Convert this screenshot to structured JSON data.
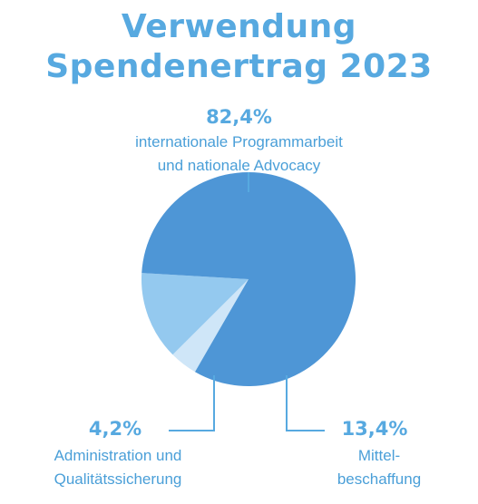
{
  "chart_data": {
    "type": "pie",
    "title_lines": [
      "Verwendung",
      "Spendenertrag 2023"
    ],
    "slices": [
      {
        "value": 82.4,
        "value_label": "82,4%",
        "label_lines": [
          "internationale Programmarbeit",
          "und nationale Advocacy"
        ],
        "color": "#4e96d6"
      },
      {
        "value": 13.4,
        "value_label": "13,4%",
        "label_lines": [
          "Mittel-",
          "beschaffung"
        ],
        "color": "#94c9ef"
      },
      {
        "value": 4.2,
        "value_label": "4,2%",
        "label_lines": [
          "Administration und",
          "Qualitätssicherung"
        ],
        "color": "#cfe6f8"
      }
    ],
    "leader_line_color": "#57a9e0",
    "legend": "none"
  }
}
